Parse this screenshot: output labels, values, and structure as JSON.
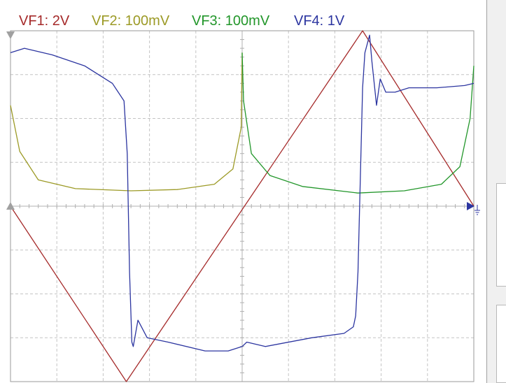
{
  "channels": [
    {
      "id": "vf1",
      "label": "VF1: 2V",
      "color": "#a52a2a"
    },
    {
      "id": "vf2",
      "label": "VF2: 100mV",
      "color": "#9c9a26"
    },
    {
      "id": "vf3",
      "label": "VF3: 100mV",
      "color": "#22962a"
    },
    {
      "id": "vf4",
      "label": "VF4: 1V",
      "color": "#2c35a0"
    }
  ],
  "colors": {
    "background": "#ffffff",
    "grid": "#c4c4c4",
    "frame": "#9a9a9a",
    "markers": "#a0a0a0"
  },
  "chart_data": {
    "type": "line",
    "grid": true,
    "divisions": {
      "x": 10,
      "y": 8
    },
    "x_range": [
      0,
      10
    ],
    "y_range": [
      -4,
      4
    ],
    "series": [
      {
        "name": "VF1: 2V",
        "color": "#a52a2a",
        "points": [
          [
            0,
            0
          ],
          [
            2.5,
            -4
          ],
          [
            7.6,
            4
          ],
          [
            10,
            0
          ]
        ]
      },
      {
        "name": "VF2: 100mV",
        "color": "#9c9a26",
        "points": [
          [
            0,
            2.3
          ],
          [
            0.2,
            1.25
          ],
          [
            0.6,
            0.6
          ],
          [
            1.4,
            0.4
          ],
          [
            2.6,
            0.35
          ],
          [
            3.6,
            0.38
          ],
          [
            4.4,
            0.5
          ],
          [
            4.8,
            0.85
          ],
          [
            4.98,
            1.8
          ],
          [
            5,
            3.5
          ]
        ]
      },
      {
        "name": "VF3: 100mV",
        "color": "#22962a",
        "points": [
          [
            5,
            3.5
          ],
          [
            5.03,
            2.4
          ],
          [
            5.2,
            1.2
          ],
          [
            5.6,
            0.7
          ],
          [
            6.3,
            0.45
          ],
          [
            7.5,
            0.3
          ],
          [
            8.5,
            0.35
          ],
          [
            9.3,
            0.5
          ],
          [
            9.7,
            0.9
          ],
          [
            9.92,
            2
          ],
          [
            10,
            3.2
          ]
        ]
      },
      {
        "name": "VF4: 1V",
        "color": "#2c35a0",
        "points": [
          [
            0,
            3.5
          ],
          [
            0.3,
            3.6
          ],
          [
            0.9,
            3.45
          ],
          [
            1.6,
            3.2
          ],
          [
            2.2,
            2.8
          ],
          [
            2.45,
            2.4
          ],
          [
            2.52,
            1.2
          ],
          [
            2.57,
            -1.5
          ],
          [
            2.62,
            -3.1
          ],
          [
            2.65,
            -3.2
          ],
          [
            2.75,
            -2.6
          ],
          [
            2.95,
            -3.0
          ],
          [
            3.4,
            -3.1
          ],
          [
            4.2,
            -3.3
          ],
          [
            4.7,
            -3.3
          ],
          [
            5,
            -3.2
          ],
          [
            5.1,
            -3.1
          ],
          [
            5.5,
            -3.2
          ],
          [
            6.5,
            -3.0
          ],
          [
            7.2,
            -2.9
          ],
          [
            7.4,
            -2.75
          ],
          [
            7.45,
            -2.5
          ],
          [
            7.5,
            -1.5
          ],
          [
            7.6,
            2.7
          ],
          [
            7.65,
            3.5
          ],
          [
            7.75,
            3.9
          ],
          [
            7.8,
            3.3
          ],
          [
            7.85,
            2.8
          ],
          [
            7.9,
            2.3
          ],
          [
            7.98,
            2.9
          ],
          [
            8.1,
            2.6
          ],
          [
            8.3,
            2.6
          ],
          [
            8.6,
            2.7
          ],
          [
            9.2,
            2.7
          ],
          [
            9.8,
            2.75
          ],
          [
            10,
            2.8
          ]
        ]
      }
    ]
  }
}
